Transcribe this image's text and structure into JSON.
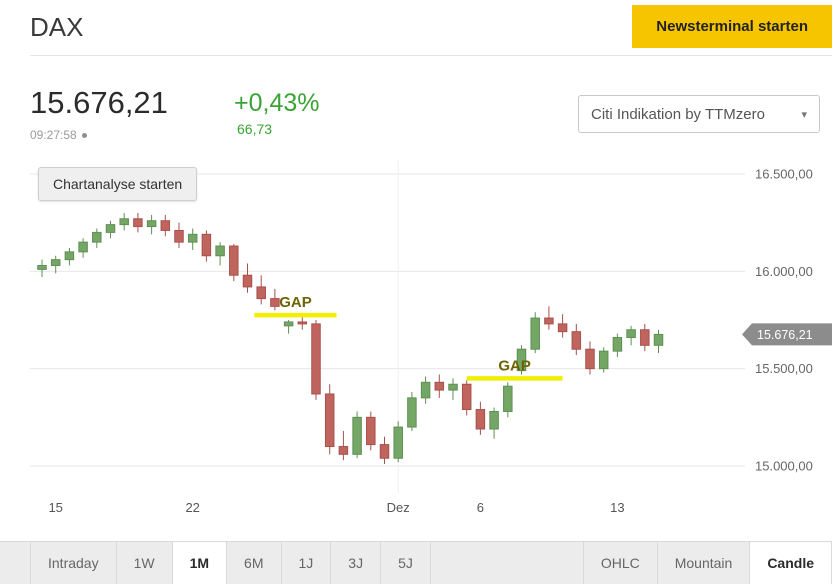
{
  "header": {
    "title": "DAX",
    "cta_button": "Newsterminal starten"
  },
  "quote": {
    "price": "15.676,21",
    "change_percent": "+0,43%",
    "change_absolute": "66,73",
    "time": "09:27:58"
  },
  "icons": {
    "caret_down": "▾",
    "live_dot": "•"
  },
  "indication_select": {
    "value": "Citi Indikation by TTMzero"
  },
  "chart": {
    "analysis_button": "Chartanalyse starten",
    "price_tag": "15.676,21"
  },
  "colors": {
    "accent_yellow": "#f6c500",
    "positive_green": "#3aa335"
  },
  "chart_data": {
    "type": "candlestick",
    "y_ticks": [
      {
        "value": 16500,
        "label": "16.500,00"
      },
      {
        "value": 16000,
        "label": "16.000,00"
      },
      {
        "value": 15500,
        "label": "15.500,00"
      },
      {
        "value": 15000,
        "label": "15.000,00"
      }
    ],
    "x_ticks": [
      {
        "index": 1,
        "label": "15"
      },
      {
        "index": 11,
        "label": "22"
      },
      {
        "index": 26,
        "label": "Dez",
        "month_line": true
      },
      {
        "index": 32,
        "label": "6"
      },
      {
        "index": 42,
        "label": "13"
      }
    ],
    "candles": [
      [
        16010,
        16060,
        15970,
        16030
      ],
      [
        16030,
        16080,
        15990,
        16060
      ],
      [
        16060,
        16120,
        16030,
        16100
      ],
      [
        16100,
        16170,
        16070,
        16150
      ],
      [
        16150,
        16220,
        16120,
        16200
      ],
      [
        16200,
        16260,
        16170,
        16240
      ],
      [
        16240,
        16300,
        16210,
        16270
      ],
      [
        16270,
        16300,
        16200,
        16230
      ],
      [
        16230,
        16290,
        16190,
        16260
      ],
      [
        16260,
        16290,
        16180,
        16210
      ],
      [
        16210,
        16250,
        16120,
        16150
      ],
      [
        16150,
        16220,
        16110,
        16190
      ],
      [
        16190,
        16210,
        16050,
        16080
      ],
      [
        16080,
        16150,
        16030,
        16130
      ],
      [
        16130,
        16140,
        15950,
        15980
      ],
      [
        15980,
        16040,
        15890,
        15920
      ],
      [
        15920,
        15980,
        15830,
        15860
      ],
      [
        15860,
        15910,
        15800,
        15820
      ],
      [
        15720,
        15750,
        15680,
        15740
      ],
      [
        15740,
        15780,
        15700,
        15730
      ],
      [
        15730,
        15750,
        15340,
        15370
      ],
      [
        15370,
        15420,
        15060,
        15100
      ],
      [
        15100,
        15180,
        15030,
        15060
      ],
      [
        15060,
        15280,
        15040,
        15250
      ],
      [
        15250,
        15280,
        15080,
        15110
      ],
      [
        15110,
        15150,
        15010,
        15040
      ],
      [
        15040,
        15230,
        15020,
        15200
      ],
      [
        15200,
        15380,
        15180,
        15350
      ],
      [
        15350,
        15460,
        15320,
        15430
      ],
      [
        15430,
        15470,
        15350,
        15390
      ],
      [
        15390,
        15450,
        15340,
        15420
      ],
      [
        15420,
        15440,
        15260,
        15290
      ],
      [
        15290,
        15330,
        15160,
        15190
      ],
      [
        15190,
        15300,
        15140,
        15280
      ],
      [
        15280,
        15430,
        15250,
        15410
      ],
      [
        15490,
        15620,
        15470,
        15600
      ],
      [
        15600,
        15790,
        15580,
        15760
      ],
      [
        15760,
        15820,
        15700,
        15730
      ],
      [
        15730,
        15780,
        15660,
        15690
      ],
      [
        15690,
        15730,
        15570,
        15600
      ],
      [
        15600,
        15640,
        15470,
        15500
      ],
      [
        15500,
        15610,
        15480,
        15590
      ],
      [
        15590,
        15680,
        15560,
        15660
      ],
      [
        15660,
        15720,
        15620,
        15700
      ],
      [
        15700,
        15730,
        15590,
        15620
      ],
      [
        15620,
        15700,
        15580,
        15676
      ]
    ],
    "annotations": [
      {
        "label": "GAP",
        "level": 15775,
        "from_index": 15.5,
        "to_index": 21.5
      },
      {
        "label": "GAP",
        "level": 15450,
        "from_index": 31.0,
        "to_index": 38.0
      }
    ],
    "last_price": 15676.21,
    "colors": {
      "up": "#74a666",
      "up_stroke": "#5f8f54",
      "down": "#c0645e",
      "down_stroke": "#a8504b",
      "grid": "#e7e7e7",
      "month_line": "#efefef",
      "gap_line": "#f1ef00",
      "gap_text": "#6d6400",
      "axis_text": "#666666",
      "x_axis_text": "#555555",
      "tag_bg": "#8c8c8c",
      "tag_text": "#ffffff"
    }
  },
  "toolbar": {
    "ranges": [
      {
        "label": "Intraday",
        "active": false
      },
      {
        "label": "1W",
        "active": false
      },
      {
        "label": "1M",
        "active": true
      },
      {
        "label": "6M",
        "active": false
      },
      {
        "label": "1J",
        "active": false
      },
      {
        "label": "3J",
        "active": false
      },
      {
        "label": "5J",
        "active": false
      }
    ],
    "chart_types": [
      {
        "label": "OHLC",
        "active": false
      },
      {
        "label": "Mountain",
        "active": false
      },
      {
        "label": "Candle",
        "active": true
      }
    ]
  }
}
